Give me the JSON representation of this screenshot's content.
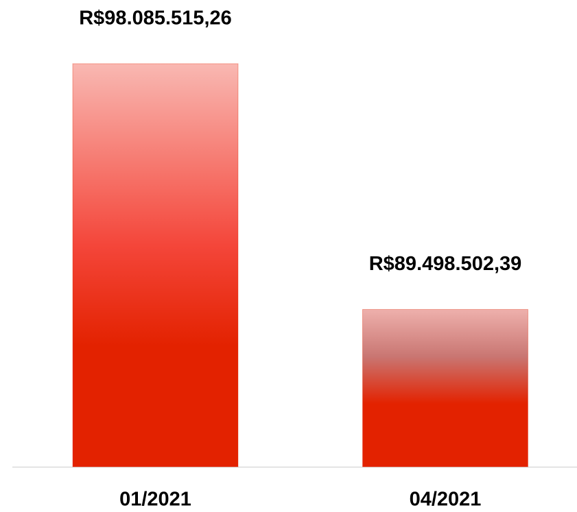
{
  "chart_data": {
    "type": "bar",
    "categories": [
      "01/2021",
      "04/2021"
    ],
    "values": [
      98085515.26,
      89498502.39
    ],
    "value_labels": [
      "R$98.085.515,26",
      "R$89.498.502,39"
    ],
    "color": "#e32200",
    "ylim": [
      84000000,
      100000000
    ]
  }
}
